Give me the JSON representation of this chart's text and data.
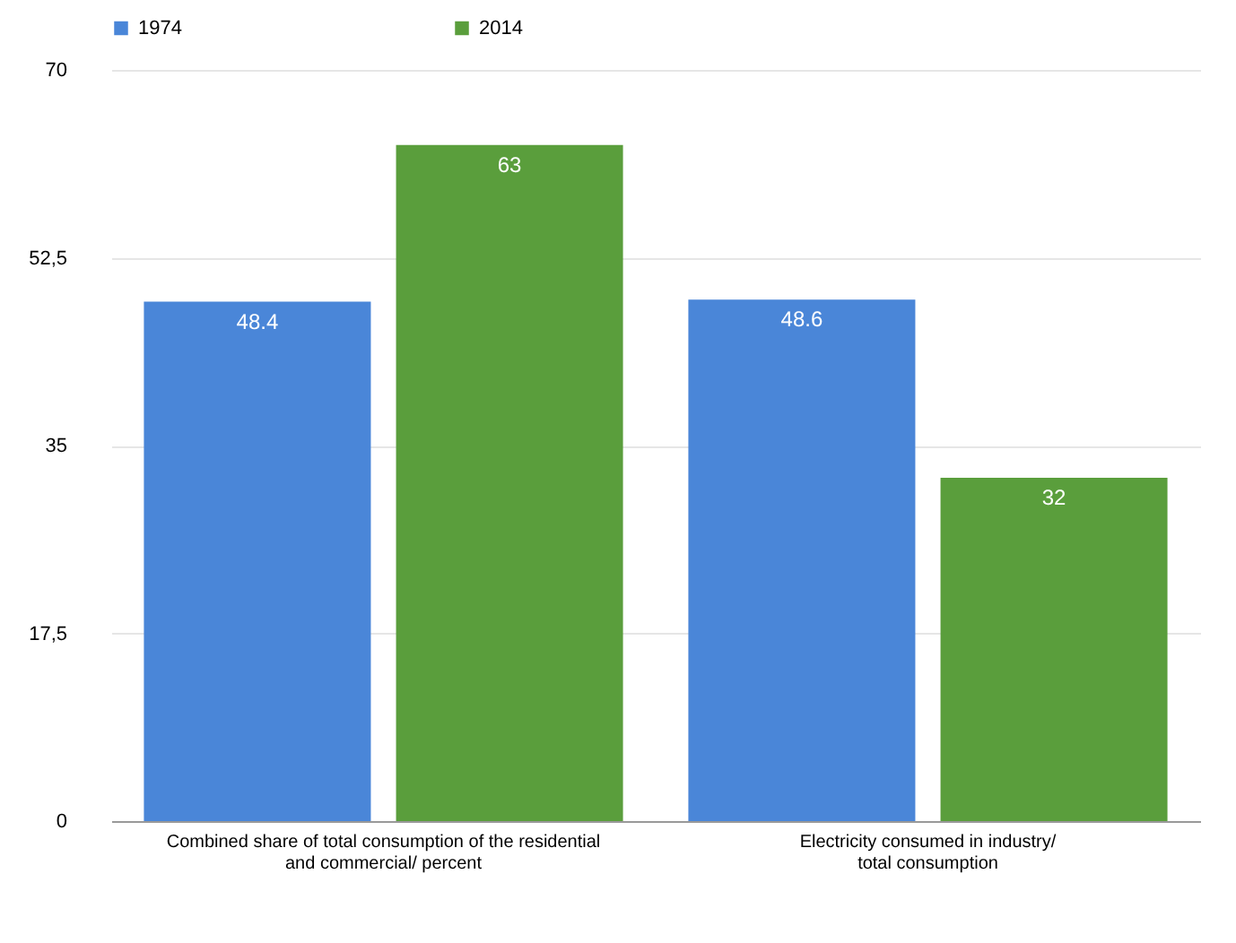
{
  "chart_data": {
    "type": "bar",
    "categories": [
      "Combined share of total consumption of the residential\nand commercial/ percent",
      "Electricity consumed in industry/\ntotal consumption"
    ],
    "series": [
      {
        "name": "1974",
        "color": "#4a86d8",
        "values": [
          48.4,
          48.6
        ]
      },
      {
        "name": "2014",
        "color": "#5a9e3c",
        "values": [
          63,
          32
        ]
      }
    ],
    "ylim": [
      0,
      70
    ],
    "yticks": [
      0,
      {
        "value": 17.5,
        "label": "17,5"
      },
      35,
      {
        "value": 52.5,
        "label": "52,5"
      },
      70
    ],
    "grid": "y",
    "legend": "top",
    "data_labels": true
  }
}
